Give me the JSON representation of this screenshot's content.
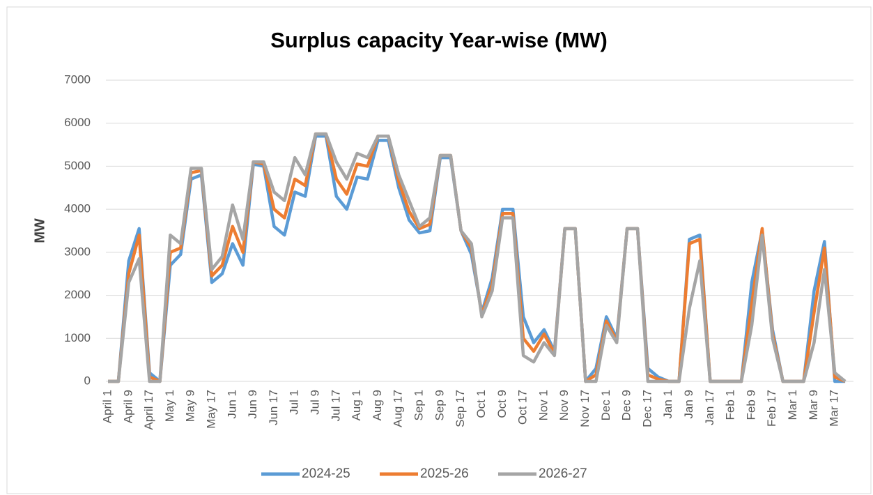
{
  "chart_data": {
    "type": "line",
    "title": "Surplus capacity Year-wise (MW)",
    "y_label": "MW",
    "categories": [
      "April 1",
      null,
      "April 9",
      null,
      "April 17",
      null,
      "May 1",
      null,
      "May 9",
      null,
      "May 17",
      null,
      "Jun 1",
      null,
      "Jun 9",
      null,
      "Jun 17",
      null,
      "Jul 1",
      null,
      "Jul 9",
      null,
      "Jul 17",
      null,
      "Aug 1",
      null,
      "Aug 9",
      null,
      "Aug 17",
      null,
      "Sep 1",
      null,
      "Sep 9",
      null,
      "Sep 17",
      null,
      "Oct 1",
      null,
      "Oct 9",
      null,
      "Oct 17",
      null,
      "Nov 1",
      null,
      "Nov 9",
      null,
      "Nov 17",
      null,
      "Dec 1",
      null,
      "Dec 9",
      null,
      "Dec 17",
      null,
      "Jan 1",
      null,
      "Jan 9",
      null,
      "Jan 17",
      null,
      "Feb 1",
      null,
      "Feb 9",
      null,
      "Feb 17",
      null,
      "Mar 1",
      null,
      "Mar 9",
      null,
      "Mar 17",
      null
    ],
    "series": [
      {
        "name": "2024-25",
        "color": "#5b9bd5",
        "values": [
          0,
          0,
          2800,
          3550,
          200,
          0,
          2700,
          2950,
          4700,
          4800,
          2300,
          2500,
          3200,
          2700,
          5050,
          5000,
          3600,
          3400,
          4400,
          4300,
          5700,
          5700,
          4300,
          4000,
          4750,
          4700,
          5600,
          5600,
          4500,
          3750,
          3450,
          3500,
          5200,
          5200,
          3500,
          2950,
          1600,
          2400,
          4000,
          4000,
          1500,
          900,
          1200,
          700,
          3550,
          3550,
          0,
          300,
          1500,
          1000,
          3550,
          3550,
          300,
          100,
          0,
          0,
          3300,
          3400,
          0,
          0,
          0,
          0,
          2300,
          3500,
          1200,
          0,
          0,
          0,
          2100,
          3250,
          0,
          0
        ]
      },
      {
        "name": "2025-26",
        "color": "#ed7d31",
        "values": [
          0,
          0,
          2500,
          3400,
          100,
          0,
          3000,
          3100,
          4850,
          4900,
          2450,
          2700,
          3600,
          3000,
          5100,
          5050,
          4000,
          3800,
          4700,
          4550,
          5750,
          5750,
          4700,
          4350,
          5050,
          5000,
          5700,
          5700,
          4650,
          3950,
          3550,
          3650,
          5250,
          5250,
          3500,
          3100,
          1550,
          2250,
          3900,
          3900,
          1000,
          700,
          1100,
          650,
          3550,
          3550,
          0,
          150,
          1400,
          950,
          3550,
          3550,
          150,
          50,
          0,
          0,
          3200,
          3300,
          0,
          0,
          0,
          0,
          1800,
          3550,
          1100,
          0,
          0,
          0,
          1600,
          3100,
          100,
          0
        ]
      },
      {
        "name": "2026-27",
        "color": "#a5a5a5",
        "values": [
          0,
          0,
          2300,
          2850,
          0,
          0,
          3400,
          3200,
          4950,
          4950,
          2600,
          2900,
          4100,
          3300,
          5100,
          5100,
          4400,
          4200,
          5200,
          4800,
          5750,
          5750,
          5100,
          4700,
          5300,
          5200,
          5700,
          5700,
          4800,
          4200,
          3600,
          3800,
          5250,
          5250,
          3500,
          3200,
          1500,
          2100,
          3800,
          3800,
          600,
          450,
          900,
          600,
          3550,
          3550,
          0,
          0,
          1300,
          900,
          3550,
          3550,
          0,
          0,
          0,
          0,
          1700,
          2800,
          0,
          0,
          0,
          0,
          1300,
          3400,
          1000,
          0,
          0,
          0,
          900,
          2600,
          200,
          0
        ]
      }
    ],
    "ylim": [
      0,
      7000
    ],
    "yticks": [
      0,
      1000,
      2000,
      3000,
      4000,
      5000,
      6000,
      7000
    ],
    "grid": true,
    "legend": "bottom"
  }
}
